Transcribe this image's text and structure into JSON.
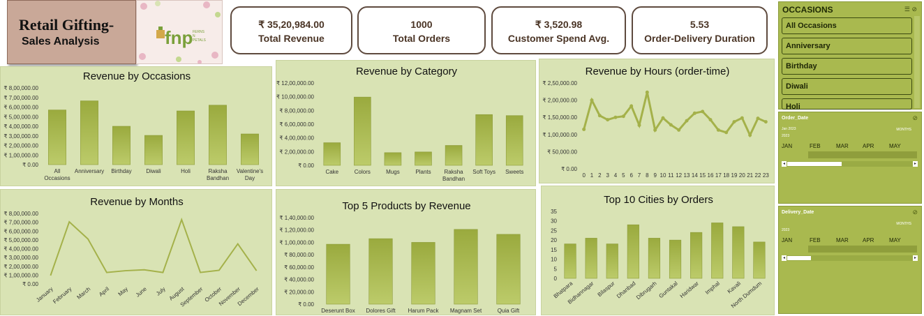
{
  "header": {
    "title": "Retail Gifting-",
    "subtitle": "Sales Analysis",
    "logo_text": "fnp",
    "logo_small": "FERNS N PETALS"
  },
  "kpis": [
    {
      "value": "₹ 35,20,984.00",
      "label": "Total Revenue"
    },
    {
      "value": "1000",
      "label": "Total Orders"
    },
    {
      "value": "₹ 3,520.98",
      "label": "Customer Spend Avg."
    },
    {
      "value": "5.53",
      "label": "Order-Delivery Duration"
    }
  ],
  "slicer": {
    "title": "OCCASIONS",
    "items": [
      "All Occasions",
      "Anniversary",
      "Birthday",
      "Diwali",
      "Holi"
    ]
  },
  "timelines": [
    {
      "field": "Order_Date",
      "range": "Jan 2023",
      "year": "2023",
      "unit": "MONTHS",
      "months": [
        "JAN",
        "FEB",
        "MAR",
        "APR",
        "MAY"
      ]
    },
    {
      "field": "Delivery_Date",
      "range": "",
      "year": "2023",
      "unit": "MONTHS",
      "months": [
        "JAN",
        "FEB",
        "MAR",
        "APR",
        "MAY"
      ]
    }
  ],
  "chart_data": [
    {
      "id": "occasions",
      "type": "bar",
      "title": "Revenue by Occasions",
      "categories": [
        "All Occasions",
        "Anniversary",
        "Birthday",
        "Diwali",
        "Holi",
        "Raksha Bandhan",
        "Valentine's Day"
      ],
      "values": [
        570000,
        665000,
        400000,
        305000,
        560000,
        620000,
        320000
      ],
      "ylim": [
        0,
        800000
      ],
      "yticks": [
        "₹ 0.00",
        "₹ 1,00,000.00",
        "₹ 2,00,000.00",
        "₹ 3,00,000.00",
        "₹ 4,00,000.00",
        "₹ 5,00,000.00",
        "₹ 6,00,000.00",
        "₹ 7,00,000.00",
        "₹ 8,00,000.00"
      ]
    },
    {
      "id": "category",
      "type": "bar",
      "title": "Revenue by Category",
      "categories": [
        "Cake",
        "Colors",
        "Mugs",
        "Plants",
        "Raksha Bandhan",
        "Soft Toys",
        "Sweets"
      ],
      "values": [
        330000,
        995000,
        185000,
        195000,
        290000,
        740000,
        725000
      ],
      "ylim": [
        0,
        1200000
      ],
      "yticks": [
        "₹ 0.00",
        "₹ 2,00,000.00",
        "₹ 4,00,000.00",
        "₹ 6,00,000.00",
        "₹ 8,00,000.00",
        "₹ 10,00,000.00",
        "₹ 12,00,000.00"
      ]
    },
    {
      "id": "hours",
      "type": "line",
      "title": "Revenue by Hours (order-time)",
      "categories": [
        "0",
        "1",
        "2",
        "3",
        "4",
        "5",
        "6",
        "7",
        "8",
        "9",
        "10",
        "11",
        "12",
        "13",
        "14",
        "15",
        "16",
        "17",
        "18",
        "19",
        "20",
        "21",
        "22",
        "23"
      ],
      "values": [
        115000,
        200000,
        155000,
        143000,
        150000,
        153000,
        183000,
        127000,
        223000,
        113000,
        148000,
        128000,
        113000,
        140000,
        162000,
        167000,
        143000,
        113000,
        106000,
        137000,
        148000,
        98000,
        147000,
        137000
      ],
      "ylim": [
        0,
        250000
      ],
      "yticks": [
        "₹ 0.00",
        "₹ 50,000.00",
        "₹ 1,00,000.00",
        "₹ 1,50,000.00",
        "₹ 2,00,000.00",
        "₹ 2,50,000.00"
      ]
    },
    {
      "id": "months",
      "type": "line",
      "title": "Revenue by Months",
      "categories": [
        "January",
        "February",
        "March",
        "April",
        "May",
        "June",
        "July",
        "August",
        "September",
        "October",
        "November",
        "December"
      ],
      "values": [
        95000,
        705000,
        510000,
        130000,
        150000,
        160000,
        130000,
        730000,
        130000,
        155000,
        455000,
        150000
      ],
      "ylim": [
        0,
        800000
      ],
      "yticks": [
        "₹ 0.00",
        "₹ 1,00,000.00",
        "₹ 2,00,000.00",
        "₹ 3,00,000.00",
        "₹ 4,00,000.00",
        "₹ 5,00,000.00",
        "₹ 6,00,000.00",
        "₹ 7,00,000.00",
        "₹ 8,00,000.00"
      ]
    },
    {
      "id": "products",
      "type": "bar",
      "title": "Top 5 Products by Revenue",
      "categories": [
        "Deserunt Box",
        "Dolores Gift",
        "Harum Pack",
        "Magnam Set",
        "Quia Gift"
      ],
      "values": [
        97000,
        106000,
        100000,
        121000,
        113000
      ],
      "ylim": [
        0,
        140000
      ],
      "yticks": [
        "₹ 0.00",
        "₹ 20,000.00",
        "₹ 40,000.00",
        "₹ 60,000.00",
        "₹ 80,000.00",
        "₹ 1,00,000.00",
        "₹ 1,20,000.00",
        "₹ 1,40,000.00"
      ]
    },
    {
      "id": "cities",
      "type": "bar",
      "title": "Top 10 Cities by Orders",
      "categories": [
        "Bhatpara",
        "Bidhannagar",
        "Bilaspur",
        "Dhanbad",
        "Dibrugarh",
        "Guntakal",
        "Haridwar",
        "Imphal",
        "Kavali",
        "North Dumdum"
      ],
      "values": [
        18,
        21,
        18,
        28,
        21,
        20,
        24,
        29,
        27,
        19
      ],
      "ylim": [
        0,
        35
      ],
      "yticks": [
        "0",
        "5",
        "10",
        "15",
        "20",
        "25",
        "30",
        "35"
      ]
    }
  ]
}
